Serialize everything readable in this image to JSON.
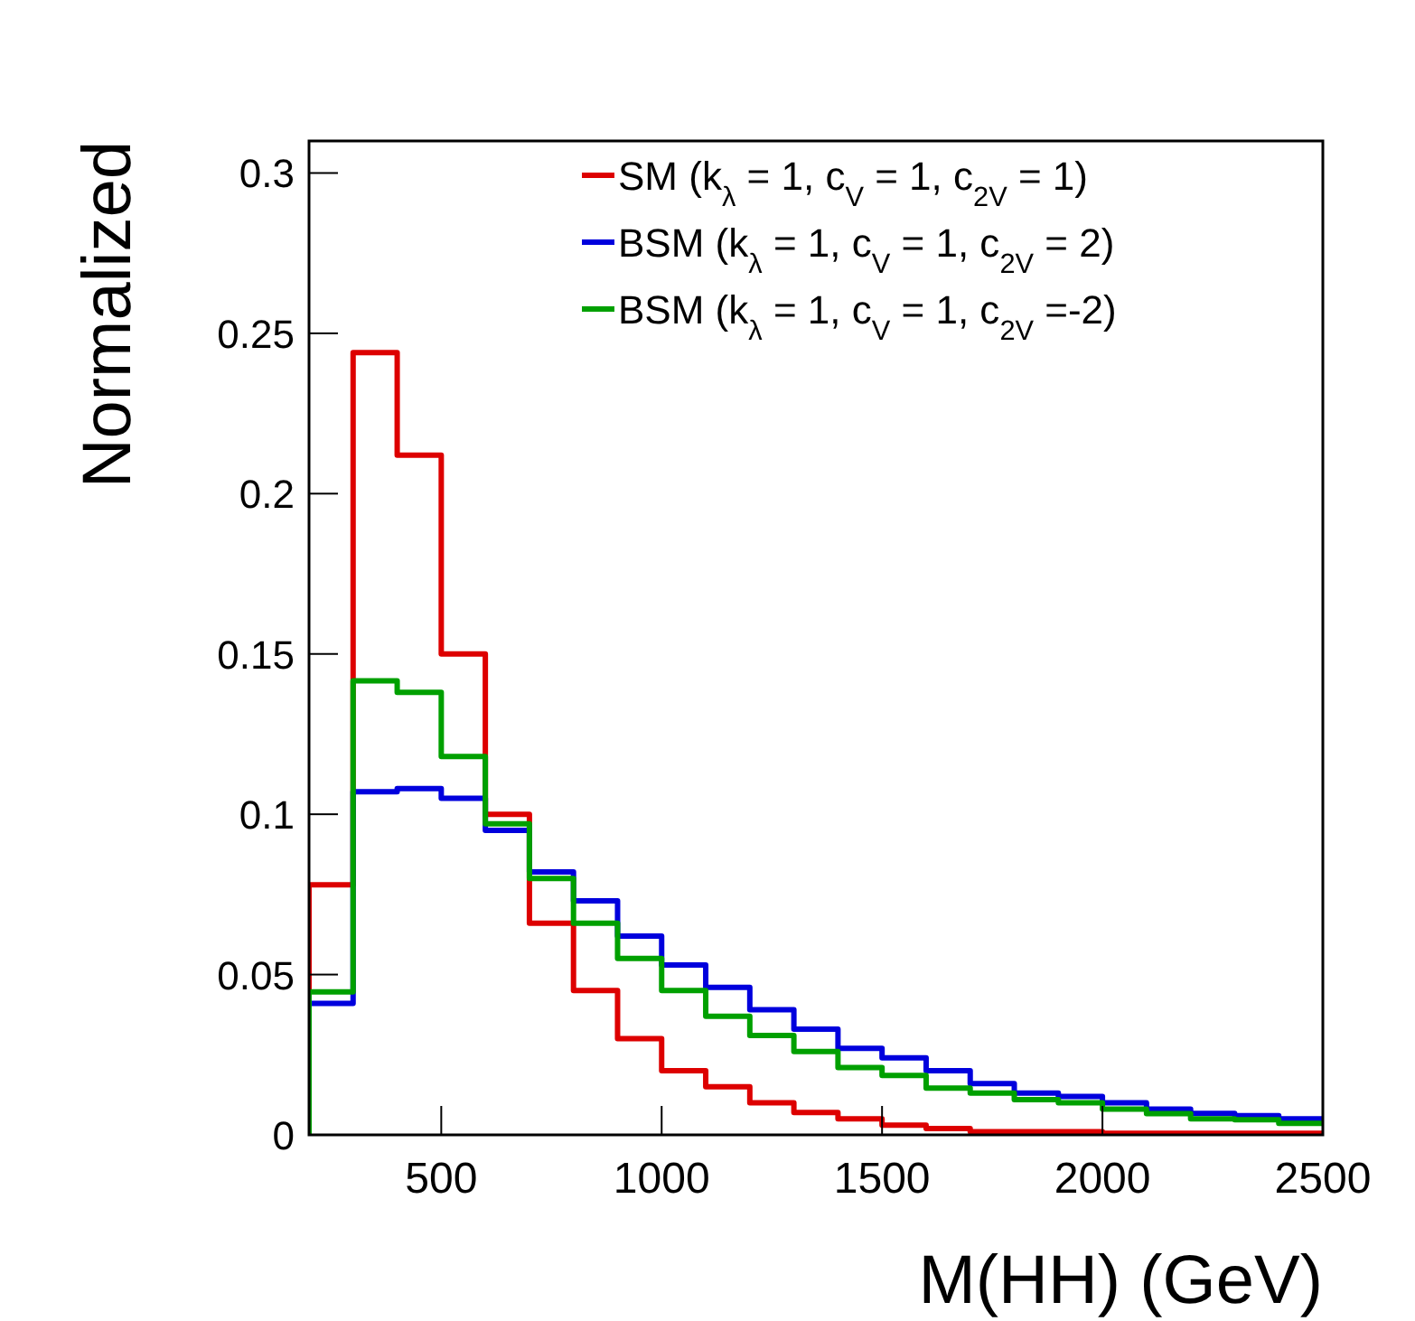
{
  "chart_data": {
    "type": "histogram",
    "xlabel": "M(HH) (GeV)",
    "ylabel": "Normalized",
    "bins": [
      200,
      300,
      400,
      500,
      600,
      700,
      800,
      900,
      1000,
      1100,
      1200,
      1300,
      1400,
      1500,
      1600,
      1700,
      1800,
      1900,
      2000,
      2100,
      2200,
      2300,
      2400,
      2500
    ],
    "series": [
      {
        "name": "SM  (k$_{λ}$ = 1, c$_{V}$ = 1, c$_{2V}$ = 1)",
        "color": "#dd0000",
        "values": [
          0.078,
          0.244,
          0.212,
          0.15,
          0.1,
          0.066,
          0.045,
          0.03,
          0.02,
          0.015,
          0.01,
          0.007,
          0.005,
          0.003,
          0.002,
          0.001,
          0.001,
          0.001,
          0.0005,
          0.0005,
          0.0005,
          0.0005,
          0.0005
        ]
      },
      {
        "name": "BSM (k$_{λ}$ = 1, c$_{V}$ = 1, c$_{2V}$ = 2)",
        "color": "#0000dd",
        "values": [
          0.041,
          0.107,
          0.108,
          0.105,
          0.095,
          0.082,
          0.073,
          0.062,
          0.053,
          0.046,
          0.039,
          0.033,
          0.027,
          0.024,
          0.02,
          0.016,
          0.013,
          0.012,
          0.01,
          0.008,
          0.0067,
          0.006,
          0.005
        ]
      },
      {
        "name": "BSM (k$_{λ}$ = 1, c$_{V}$ = 1, c$_{2V}$ =-2)",
        "color": "#00a000",
        "values": [
          0.0446,
          0.1416,
          0.138,
          0.118,
          0.097,
          0.08,
          0.066,
          0.055,
          0.045,
          0.037,
          0.031,
          0.026,
          0.021,
          0.0185,
          0.0146,
          0.013,
          0.011,
          0.01,
          0.008,
          0.0066,
          0.005,
          0.0047,
          0.0036
        ]
      }
    ],
    "xlim": [
      200,
      2500
    ],
    "ylim": [
      0,
      0.31
    ],
    "xticks": [
      500,
      1000,
      1500,
      2000,
      2500
    ],
    "yticks": [
      0,
      0.05,
      0.1,
      0.15,
      0.2,
      0.25,
      0.3
    ],
    "grid": false,
    "legend": "top right"
  }
}
